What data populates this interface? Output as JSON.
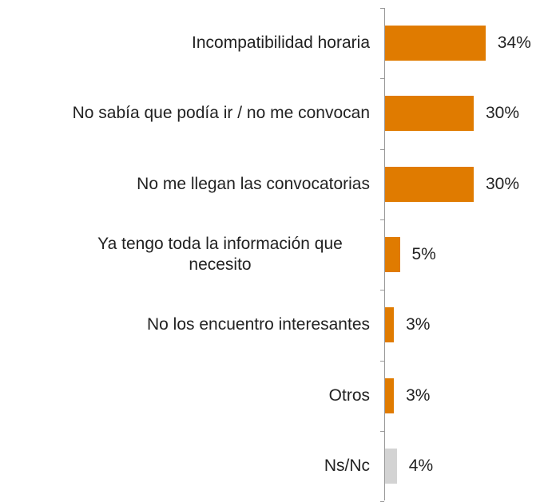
{
  "chart_data": {
    "type": "barh",
    "categories": [
      "Incompatibilidad horaria",
      "No sabía que podía ir / no me convocan",
      "No me llegan las convocatorias",
      "Ya tengo toda la información que necesito",
      "No los encuentro interesantes",
      "Otros",
      "Ns/Nc"
    ],
    "values": [
      34,
      30,
      30,
      5,
      3,
      3,
      4
    ],
    "value_labels": [
      "34%",
      "30%",
      "30%",
      "5%",
      "3%",
      "3%",
      "4%"
    ],
    "colors": [
      "#e07b00",
      "#e07b00",
      "#e07b00",
      "#e07b00",
      "#e07b00",
      "#e07b00",
      "#d3d3d3"
    ]
  }
}
